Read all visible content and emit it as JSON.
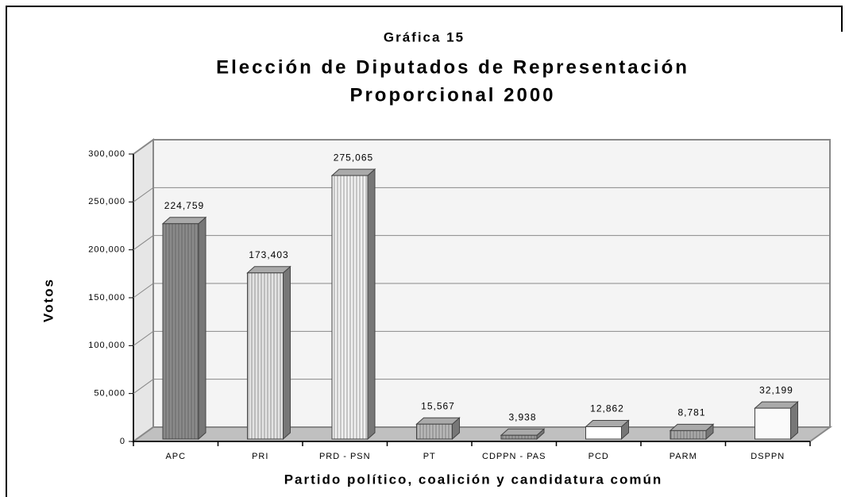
{
  "chart_data": {
    "type": "bar3d",
    "title": "Gráfica 15",
    "subtitle": [
      "Elección de Diputados de Representación",
      "Proporcional 2000"
    ],
    "y_label": "Votos",
    "x_label": "Partido político, coalición y candidatura común",
    "categories": [
      "APC",
      "PRI",
      "PRD - PSN",
      "PT",
      "CDPPN - PAS",
      "PCD",
      "PARM",
      "DSPPN"
    ],
    "values": [
      224759,
      173403,
      275065,
      15567,
      3938,
      12862,
      8781,
      32199
    ],
    "value_labels": [
      "224,759",
      "173,403",
      "275,065",
      "15,567",
      "3,938",
      "12,862",
      "8,781",
      "32,199"
    ],
    "colors": [
      "#8a8a8a",
      "#e4e4e4",
      "#f0f0f0",
      "#b8b8b8",
      "#9a9a9a",
      "#ffffff",
      "#a8a8a8",
      "#fafafa"
    ],
    "ylim": [
      0,
      300000
    ],
    "yticks": [
      0,
      {
        "value": 50000,
        "label": "50,000"
      },
      {
        "value": 100000,
        "label": "100,000"
      },
      {
        "value": 150000,
        "label": "150,000"
      },
      {
        "value": 200000,
        "label": "200,000"
      },
      {
        "value": 250000,
        "label": "250,000"
      },
      {
        "value": 300000,
        "label": "300,000"
      }
    ],
    "grid": true
  }
}
